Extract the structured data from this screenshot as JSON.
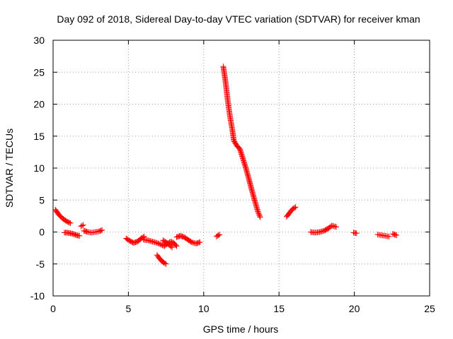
{
  "chart_data": {
    "type": "scatter",
    "title": "Day 092 of 2018, Sidereal Day-to-day VTEC variation (SDTVAR) for receiver kman",
    "xlabel": "GPS time / hours",
    "ylabel": "SDTVAR / TECUs",
    "xlim": [
      0,
      25
    ],
    "ylim": [
      -10,
      30
    ],
    "xticks": [
      0,
      5,
      10,
      15,
      20,
      25
    ],
    "yticks": [
      -10,
      -5,
      0,
      5,
      10,
      15,
      20,
      25,
      30
    ],
    "grid": true,
    "marker": "+",
    "color": "#ff0000",
    "series": [
      {
        "name": "SDTVAR",
        "segments": [
          {
            "x": [
              0.15,
              0.35,
              0.55,
              0.75,
              0.95,
              1.15
            ],
            "y": [
              3.5,
              2.8,
              2.3,
              1.9,
              1.6,
              1.4
            ]
          },
          {
            "x": [
              0.75,
              0.95,
              1.15,
              1.35,
              1.55,
              1.75
            ],
            "y": [
              -0.1,
              -0.1,
              -0.2,
              -0.3,
              -0.5,
              -0.6
            ]
          },
          {
            "x": [
              1.85,
              2.0
            ],
            "y": [
              0.9,
              1.1
            ]
          },
          {
            "x": [
              2.05,
              2.3,
              2.55,
              2.8,
              3.05,
              3.25
            ],
            "y": [
              0.2,
              0.0,
              -0.1,
              0.0,
              0.1,
              0.3
            ]
          },
          {
            "x": [
              4.85,
              5.1,
              5.35,
              5.6,
              5.85,
              6.05
            ],
            "y": [
              -1.0,
              -1.4,
              -1.7,
              -1.5,
              -1.0,
              -0.7
            ]
          },
          {
            "x": [
              6.0,
              6.3,
              6.6,
              6.9,
              7.2,
              7.4,
              7.6,
              7.8,
              8.0,
              8.2
            ],
            "y": [
              -1.2,
              -1.3,
              -1.5,
              -1.7,
              -2.0,
              -2.2,
              -1.8,
              -1.5,
              -1.7,
              -2.2
            ]
          },
          {
            "x": [
              6.9,
              7.05,
              7.2,
              7.35,
              7.5
            ],
            "y": [
              -3.6,
              -4.1,
              -4.5,
              -4.8,
              -5.0
            ]
          },
          {
            "x": [
              7.3,
              7.5,
              7.7,
              7.9
            ],
            "y": [
              -1.3,
              -1.6,
              -2.0,
              -2.4
            ]
          },
          {
            "x": [
              8.2,
              8.45,
              8.7,
              8.95,
              9.2,
              9.5,
              9.75
            ],
            "y": [
              -0.8,
              -0.6,
              -0.8,
              -1.2,
              -1.6,
              -1.8,
              -1.6
            ]
          },
          {
            "x": [
              10.85,
              11.05
            ],
            "y": [
              -0.7,
              -0.4
            ]
          },
          {
            "x": [
              11.3,
              11.45,
              11.6,
              11.75,
              11.9,
              12.0,
              12.2,
              12.4,
              12.6,
              12.8,
              13.0,
              13.2,
              13.4,
              13.6,
              13.75
            ],
            "y": [
              25.9,
              23.5,
              20.5,
              18.0,
              16.0,
              14.3,
              13.5,
              13.0,
              11.5,
              10.0,
              8.3,
              6.5,
              4.8,
              3.2,
              2.3
            ]
          },
          {
            "x": [
              15.5,
              15.7,
              15.9,
              16.1
            ],
            "y": [
              2.4,
              3.0,
              3.6,
              3.9
            ]
          },
          {
            "x": [
              17.1,
              17.4,
              17.7,
              18.0,
              18.3,
              18.5,
              18.8
            ],
            "y": [
              0.0,
              -0.1,
              0.0,
              0.2,
              0.6,
              1.0,
              0.8
            ]
          },
          {
            "x": [
              19.95,
              20.15
            ],
            "y": [
              -0.1,
              -0.2
            ]
          },
          {
            "x": [
              21.55,
              21.8,
              22.05,
              22.3
            ],
            "y": [
              -0.4,
              -0.5,
              -0.6,
              -0.7
            ]
          },
          {
            "x": [
              22.55,
              22.8
            ],
            "y": [
              -0.3,
              -0.5
            ]
          }
        ]
      }
    ]
  }
}
